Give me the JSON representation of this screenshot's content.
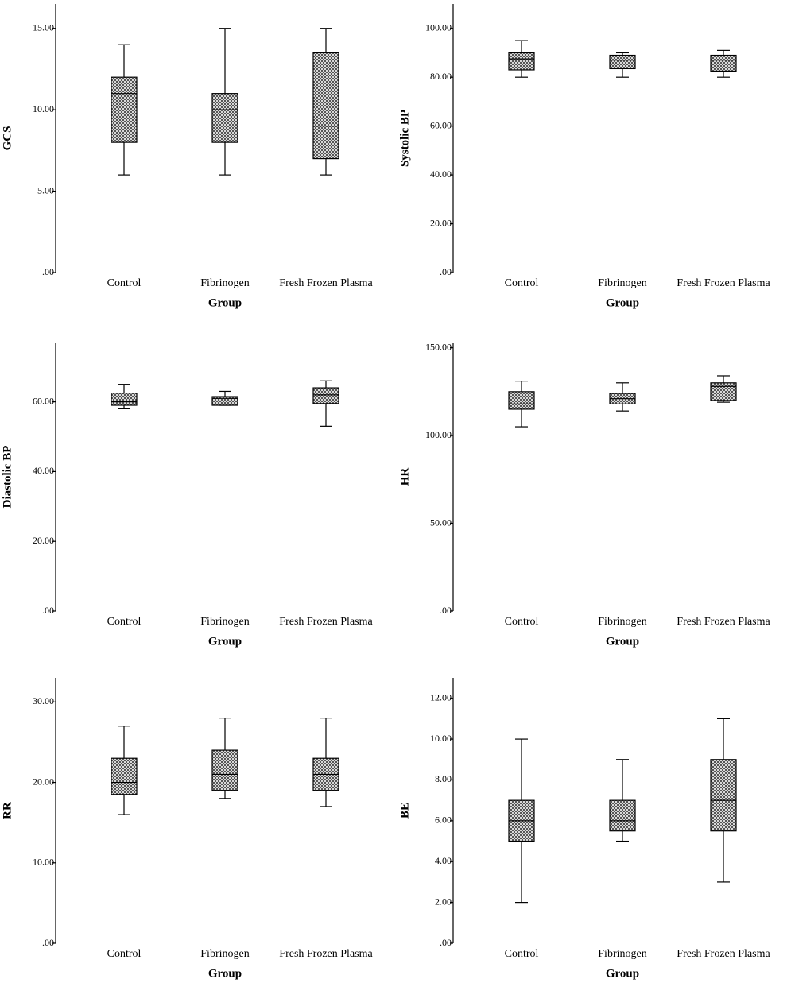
{
  "chart_data": [
    {
      "type": "box",
      "ylabel": "GCS",
      "xlabel": "Group",
      "categories": [
        "Control",
        "Fibrinogen",
        "Fresh Frozen Plasma"
      ],
      "ylim": [
        0,
        16.5
      ],
      "yticks": [
        {
          "value": 0,
          "label": ".00"
        },
        {
          "value": 5,
          "label": "5.00"
        },
        {
          "value": 10,
          "label": "10.00"
        },
        {
          "value": 15,
          "label": "15.00"
        }
      ],
      "boxes": [
        {
          "min": 6,
          "q1": 8,
          "median": 11,
          "q3": 12,
          "max": 14
        },
        {
          "min": 6,
          "q1": 8,
          "median": 10,
          "q3": 11,
          "max": 15
        },
        {
          "min": 6,
          "q1": 7,
          "median": 9,
          "q3": 13.5,
          "max": 15
        }
      ]
    },
    {
      "type": "box",
      "ylabel": "Systolic BP",
      "xlabel": "Group",
      "categories": [
        "Control",
        "Fibrinogen",
        "Fresh Frozen Plasma"
      ],
      "ylim": [
        0,
        110
      ],
      "yticks": [
        {
          "value": 0,
          "label": ".00"
        },
        {
          "value": 20,
          "label": "20.00"
        },
        {
          "value": 40,
          "label": "40.00"
        },
        {
          "value": 60,
          "label": "60.00"
        },
        {
          "value": 80,
          "label": "80.00"
        },
        {
          "value": 100,
          "label": "100.00"
        }
      ],
      "boxes": [
        {
          "min": 80,
          "q1": 83,
          "median": 87.5,
          "q3": 90,
          "max": 95
        },
        {
          "min": 80,
          "q1": 83.5,
          "median": 87,
          "q3": 89,
          "max": 90
        },
        {
          "min": 80,
          "q1": 82.5,
          "median": 87,
          "q3": 89,
          "max": 91
        }
      ]
    },
    {
      "type": "box",
      "ylabel": "Diastolic BP",
      "xlabel": "Group",
      "categories": [
        "Control",
        "Fibrinogen",
        "Fresh Frozen Plasma"
      ],
      "ylim": [
        0,
        77
      ],
      "yticks": [
        {
          "value": 0,
          "label": ".00"
        },
        {
          "value": 20,
          "label": "20.00"
        },
        {
          "value": 40,
          "label": "40.00"
        },
        {
          "value": 60,
          "label": "60.00"
        }
      ],
      "boxes": [
        {
          "min": 58,
          "q1": 59,
          "median": 60,
          "q3": 62.5,
          "max": 65
        },
        {
          "min": 59,
          "q1": 59,
          "median": 61,
          "q3": 61.5,
          "max": 63
        },
        {
          "min": 53,
          "q1": 59.5,
          "median": 62,
          "q3": 64,
          "max": 66
        }
      ]
    },
    {
      "type": "box",
      "ylabel": "HR",
      "xlabel": "Group",
      "categories": [
        "Control",
        "Fibrinogen",
        "Fresh Frozen Plasma"
      ],
      "ylim": [
        0,
        153
      ],
      "yticks": [
        {
          "value": 0,
          "label": ".00"
        },
        {
          "value": 50,
          "label": "50.00"
        },
        {
          "value": 100,
          "label": "100.00"
        },
        {
          "value": 150,
          "label": "150.00"
        }
      ],
      "boxes": [
        {
          "min": 105,
          "q1": 115,
          "median": 118,
          "q3": 125,
          "max": 131
        },
        {
          "min": 114,
          "q1": 118,
          "median": 121,
          "q3": 124,
          "max": 130
        },
        {
          "min": 119,
          "q1": 120,
          "median": 128,
          "q3": 130,
          "max": 134
        }
      ]
    },
    {
      "type": "box",
      "ylabel": "RR",
      "xlabel": "Group",
      "categories": [
        "Control",
        "Fibrinogen",
        "Fresh Frozen Plasma"
      ],
      "ylim": [
        0,
        33
      ],
      "yticks": [
        {
          "value": 0,
          "label": ".00"
        },
        {
          "value": 10,
          "label": "10.00"
        },
        {
          "value": 20,
          "label": "20.00"
        },
        {
          "value": 30,
          "label": "30.00"
        }
      ],
      "boxes": [
        {
          "min": 16,
          "q1": 18.5,
          "median": 20,
          "q3": 23,
          "max": 27
        },
        {
          "min": 18,
          "q1": 19,
          "median": 21,
          "q3": 24,
          "max": 28
        },
        {
          "min": 17,
          "q1": 19,
          "median": 21,
          "q3": 23,
          "max": 28
        }
      ]
    },
    {
      "type": "box",
      "ylabel": "BE",
      "xlabel": "Group",
      "categories": [
        "Control",
        "Fibrinogen",
        "Fresh Frozen Plasma"
      ],
      "ylim": [
        0,
        13
      ],
      "yticks": [
        {
          "value": 0,
          "label": ".00"
        },
        {
          "value": 2,
          "label": "2.00"
        },
        {
          "value": 4,
          "label": "4.00"
        },
        {
          "value": 6,
          "label": "6.00"
        },
        {
          "value": 8,
          "label": "8.00"
        },
        {
          "value": 10,
          "label": "10.00"
        },
        {
          "value": 12,
          "label": "12.00"
        }
      ],
      "boxes": [
        {
          "min": 2,
          "q1": 5,
          "median": 6,
          "q3": 7,
          "max": 10
        },
        {
          "min": 5,
          "q1": 5.5,
          "median": 6,
          "q3": 7,
          "max": 9
        },
        {
          "min": 3,
          "q1": 5.5,
          "median": 7,
          "q3": 9,
          "max": 11
        }
      ]
    }
  ]
}
